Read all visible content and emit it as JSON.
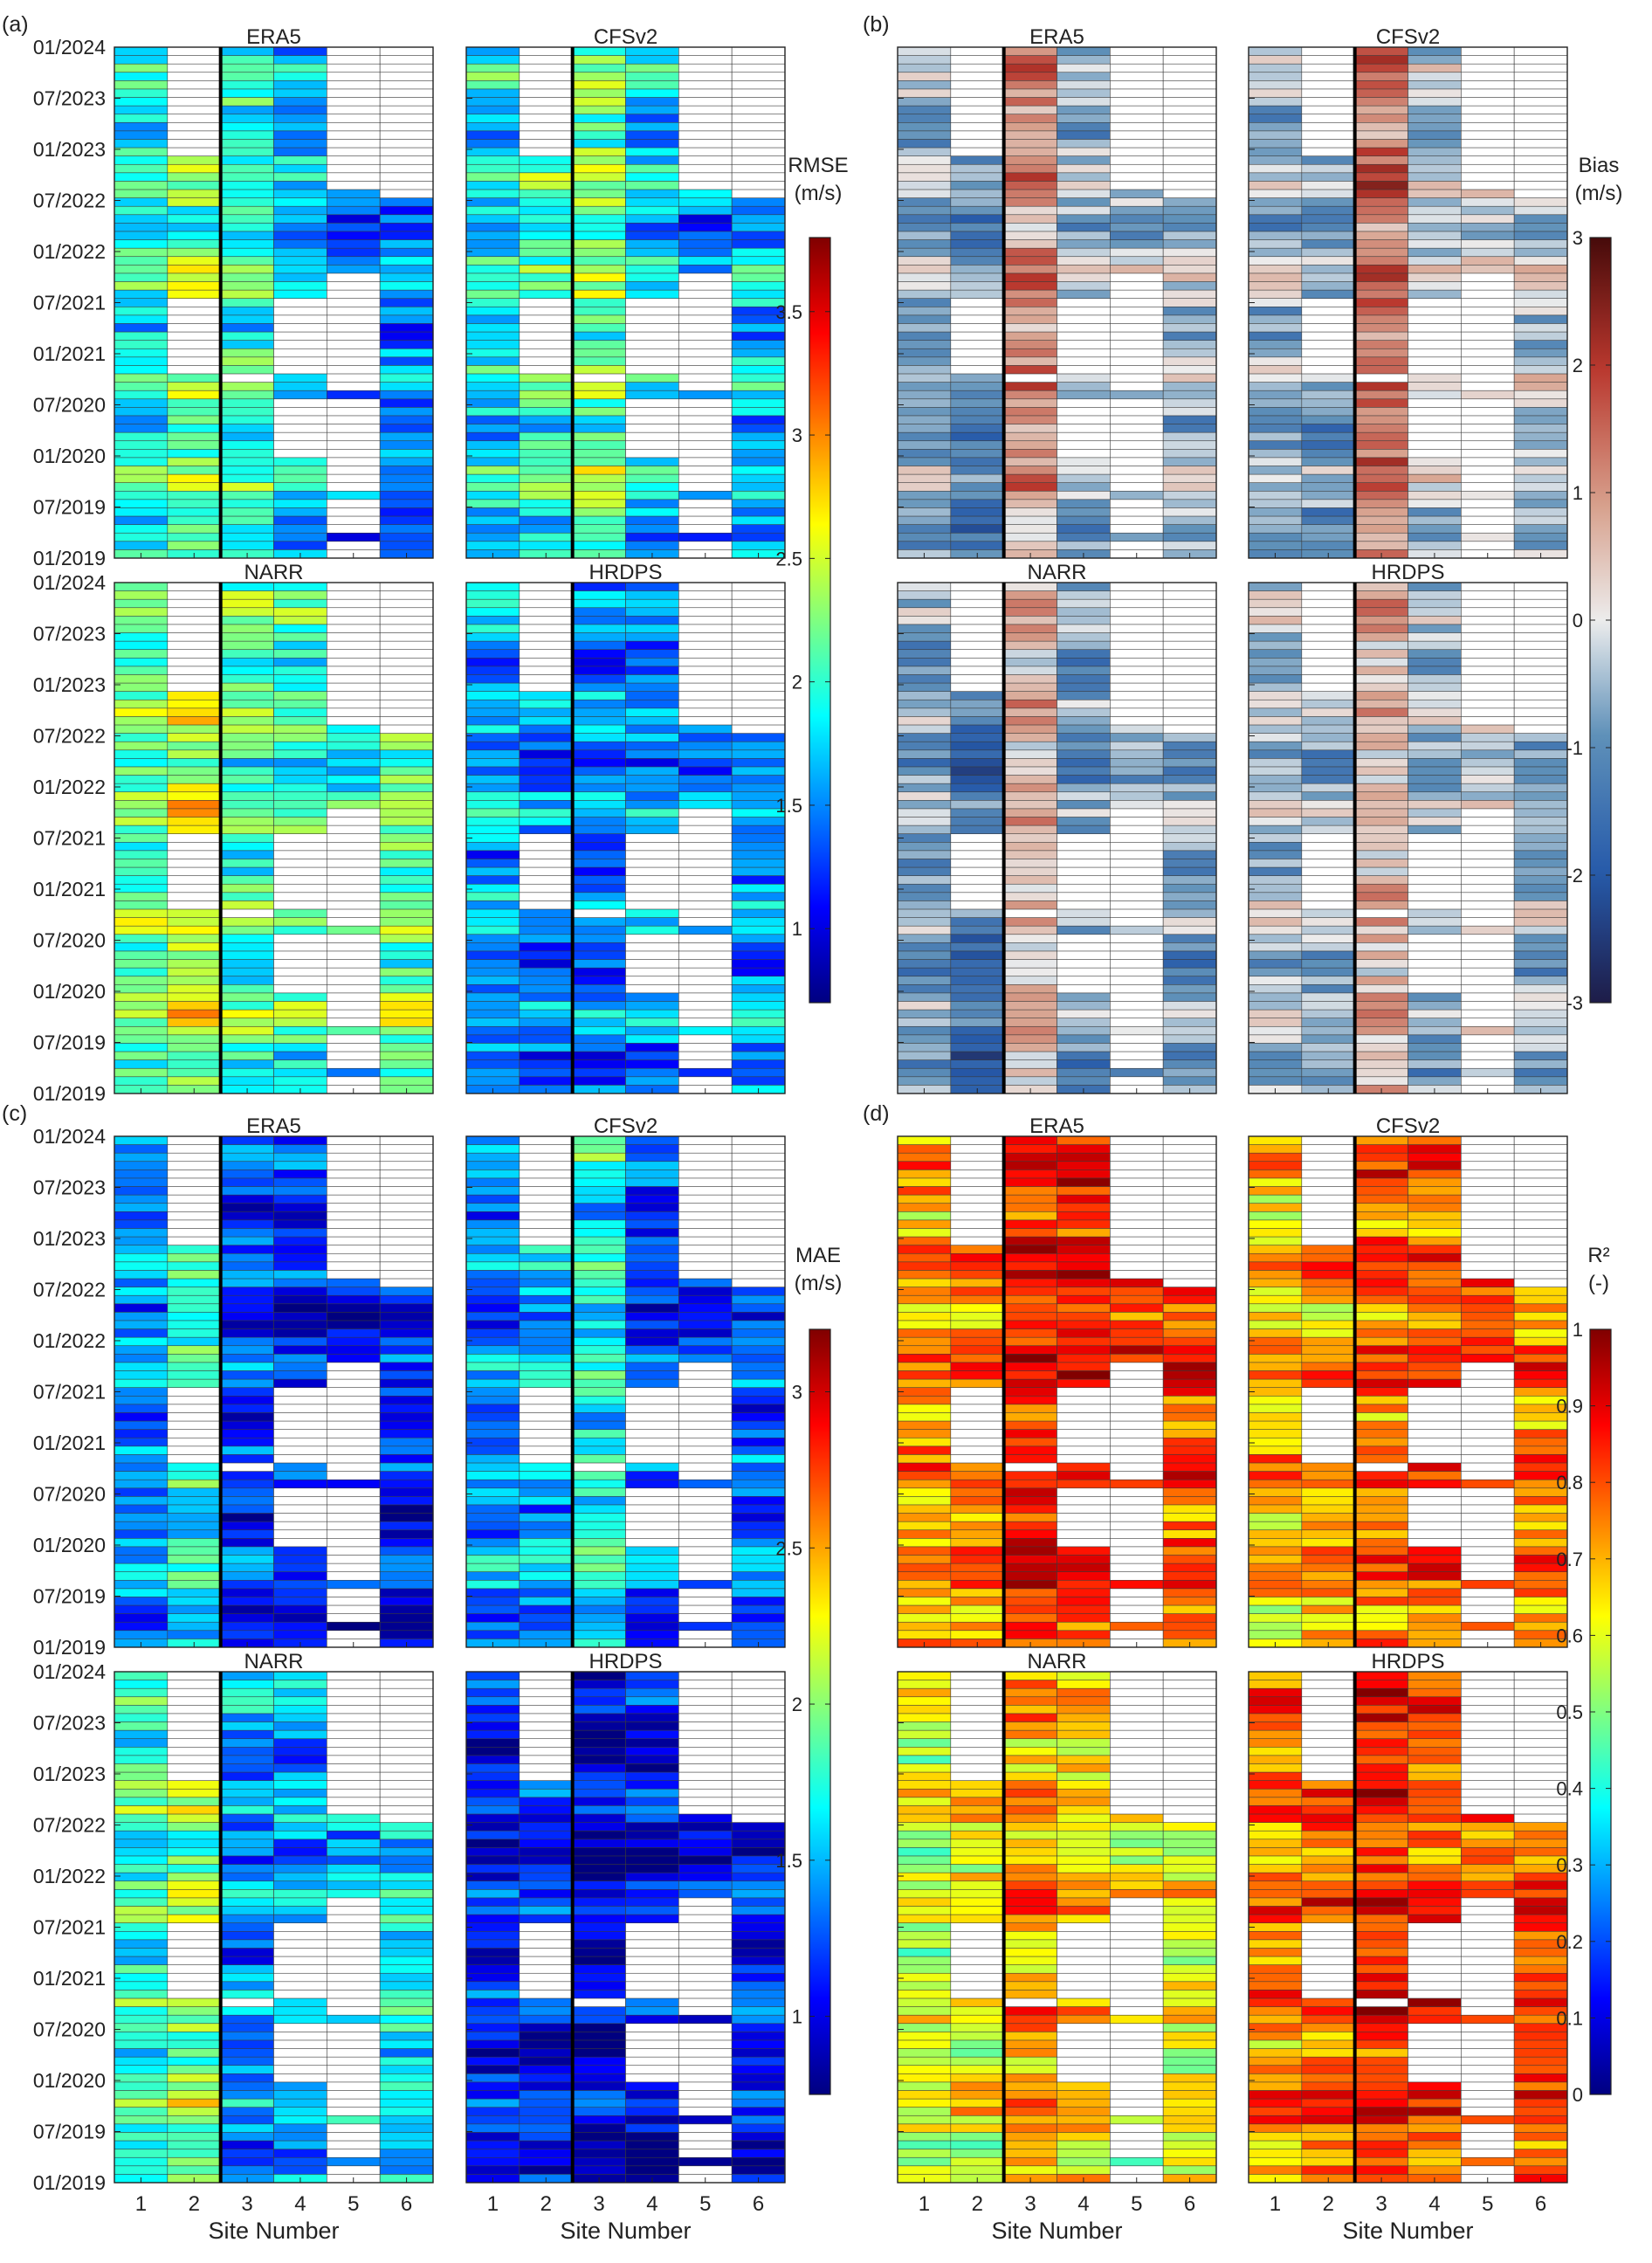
{
  "figure": {
    "x_axis_label": "Site Number",
    "x_ticks": [
      "1",
      "2",
      "3",
      "4",
      "5",
      "6"
    ],
    "y_ticks": [
      "01/2024",
      "07/2023",
      "01/2023",
      "07/2022",
      "01/2022",
      "07/2021",
      "01/2021",
      "07/2020",
      "01/2020",
      "07/2019",
      "01/2019"
    ],
    "models": [
      "ERA5",
      "CFSv2",
      "NARR",
      "HRDPS"
    ]
  },
  "chart_data": [
    {
      "panel": "(a)",
      "type": "heatmap",
      "metric": "RMSE",
      "colorbar_label": [
        "RMSE",
        "(m/s)"
      ],
      "colorbar_ticks": [
        "1",
        "1.5",
        "2",
        "2.5",
        "3",
        "3.5"
      ],
      "colorbar_tick_values": [
        1,
        1.5,
        2,
        2.5,
        3,
        3.5
      ],
      "range": [
        0.7,
        3.8
      ],
      "colormap": "jet",
      "rows": 61,
      "note_missing": "white cells = no data",
      "site_baseline": {
        "ERA5": [
          1.9,
          2.2,
          2.0,
          1.6,
          1.4,
          1.5
        ],
        "CFSv2": [
          1.8,
          2.0,
          2.2,
          1.7,
          1.5,
          1.7
        ],
        "NARR": [
          2.2,
          2.5,
          2.1,
          2.0,
          1.9,
          2.2
        ],
        "HRDPS": [
          1.6,
          1.5,
          1.5,
          1.5,
          1.5,
          1.6
        ]
      }
    },
    {
      "panel": "(b)",
      "type": "heatmap",
      "metric": "Bias",
      "colorbar_label": [
        "Bias",
        "(m/s)"
      ],
      "colorbar_ticks": [
        "-3",
        "-2",
        "-1",
        "0",
        "1",
        "2",
        "3"
      ],
      "colorbar_tick_values": [
        -3,
        -2,
        -1,
        0,
        1,
        2,
        3
      ],
      "range": [
        -3,
        3
      ],
      "colormap": "diverging blue-white-red",
      "rows": 61,
      "site_baseline": {
        "ERA5": [
          -0.6,
          -1.1,
          1.0,
          -0.5,
          -0.3,
          -0.4
        ],
        "CFSv2": [
          -0.5,
          -0.8,
          1.4,
          -0.3,
          0.0,
          -0.2
        ],
        "NARR": [
          -0.7,
          -1.5,
          0.5,
          -0.9,
          -0.5,
          -0.7
        ],
        "HRDPS": [
          -0.4,
          -0.6,
          0.6,
          -0.6,
          -0.3,
          -0.5
        ]
      }
    },
    {
      "panel": "(c)",
      "type": "heatmap",
      "metric": "MAE",
      "colorbar_label": [
        "MAE",
        "(m/s)"
      ],
      "colorbar_ticks": [
        "1",
        "1.5",
        "2",
        "2.5",
        "3"
      ],
      "colorbar_tick_values": [
        1,
        1.5,
        2,
        2.5,
        3
      ],
      "range": [
        0.75,
        3.2
      ],
      "colormap": "jet",
      "rows": 61,
      "site_baseline": {
        "ERA5": [
          1.4,
          1.7,
          1.2,
          1.1,
          1.0,
          1.1
        ],
        "CFSv2": [
          1.4,
          1.5,
          1.7,
          1.2,
          1.1,
          1.3
        ],
        "NARR": [
          1.8,
          2.0,
          1.4,
          1.5,
          1.5,
          1.7
        ],
        "HRDPS": [
          1.1,
          1.1,
          0.95,
          1.0,
          1.0,
          1.1
        ]
      }
    },
    {
      "panel": "(d)",
      "type": "heatmap",
      "metric": "R2",
      "colorbar_label": [
        "R²",
        "(-)"
      ],
      "colorbar_ticks": [
        "0",
        "0.1",
        "0.2",
        "0.3",
        "0.4",
        "0.5",
        "0.6",
        "0.7",
        "0.8",
        "0.9",
        "1"
      ],
      "colorbar_tick_values": [
        0,
        0.1,
        0.2,
        0.3,
        0.4,
        0.5,
        0.6,
        0.7,
        0.8,
        0.9,
        1
      ],
      "range": [
        0,
        1
      ],
      "colormap": "jet",
      "rows": 61,
      "site_baseline": {
        "ERA5": [
          0.72,
          0.74,
          0.85,
          0.84,
          0.82,
          0.8
        ],
        "CFSv2": [
          0.68,
          0.72,
          0.78,
          0.76,
          0.78,
          0.76
        ],
        "NARR": [
          0.58,
          0.62,
          0.72,
          0.66,
          0.6,
          0.62
        ],
        "HRDPS": [
          0.74,
          0.78,
          0.84,
          0.8,
          0.8,
          0.8
        ]
      }
    }
  ]
}
